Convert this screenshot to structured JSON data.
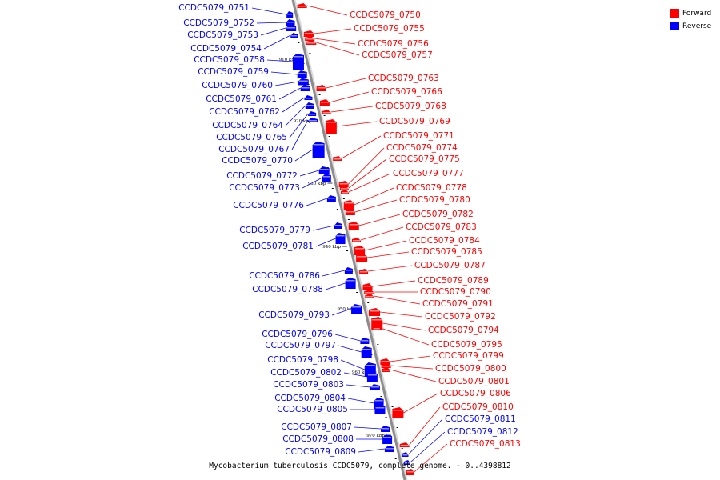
{
  "caption": "Mycobacterium tuberculosis CCDC5079, complete genome. - 0..4398812",
  "legend": [
    {
      "label": "Forward",
      "color": "#ff0000"
    },
    {
      "label": "Reverse",
      "color": "#0000ff"
    }
  ],
  "colors": {
    "forward": "#ff0000",
    "reverse": "#0000ff",
    "backbone": "#8c8c8c"
  },
  "scale_marks": [
    "910 kbp",
    "920 kbp",
    "930 kbp",
    "940 kbp",
    "950 kbp",
    "960 kbp",
    "970 kbp"
  ],
  "reverse_genes": [
    "CCDC5079_0751",
    "CCDC5079_0752",
    "CCDC5079_0753",
    "CCDC5079_0754",
    "CCDC5079_0758",
    "CCDC5079_0759",
    "CCDC5079_0760",
    "CCDC5079_0761",
    "CCDC5079_0762",
    "CCDC5079_0764",
    "CCDC5079_0765",
    "CCDC5079_0767",
    "CCDC5079_0770",
    "CCDC5079_0772",
    "CCDC5079_0773",
    "CCDC5079_0776",
    "CCDC5079_0779",
    "CCDC5079_0781",
    "CCDC5079_0786",
    "CCDC5079_0788",
    "CCDC5079_0793",
    "CCDC5079_0796",
    "CCDC5079_0797",
    "CCDC5079_0798",
    "CCDC5079_0802",
    "CCDC5079_0803",
    "CCDC5079_0804",
    "CCDC5079_0805",
    "CCDC5079_0807",
    "CCDC5079_0808",
    "CCDC5079_0809"
  ],
  "forward_genes": [
    "CCDC5079_0750",
    "CCDC5079_0755",
    "CCDC5079_0756",
    "CCDC5079_0757",
    "CCDC5079_0763",
    "CCDC5079_0766",
    "CCDC5079_0768",
    "CCDC5079_0769",
    "CCDC5079_0771",
    "CCDC5079_0774",
    "CCDC5079_0775",
    "CCDC5079_0777",
    "CCDC5079_0778",
    "CCDC5079_0780",
    "CCDC5079_0782",
    "CCDC5079_0783",
    "CCDC5079_0784",
    "CCDC5079_0785",
    "CCDC5079_0787",
    "CCDC5079_0789",
    "CCDC5079_0790",
    "CCDC5079_0791",
    "CCDC5079_0792",
    "CCDC5079_0794",
    "CCDC5079_0795",
    "CCDC5079_0799",
    "CCDC5079_0800",
    "CCDC5079_0801",
    "CCDC5079_0806",
    "CCDC5079_0810"
  ],
  "right_reverse_genes": [
    "CCDC5079_0811",
    "CCDC5079_0812"
  ],
  "right_forward_tail": [
    "CCDC5079_0813"
  ]
}
